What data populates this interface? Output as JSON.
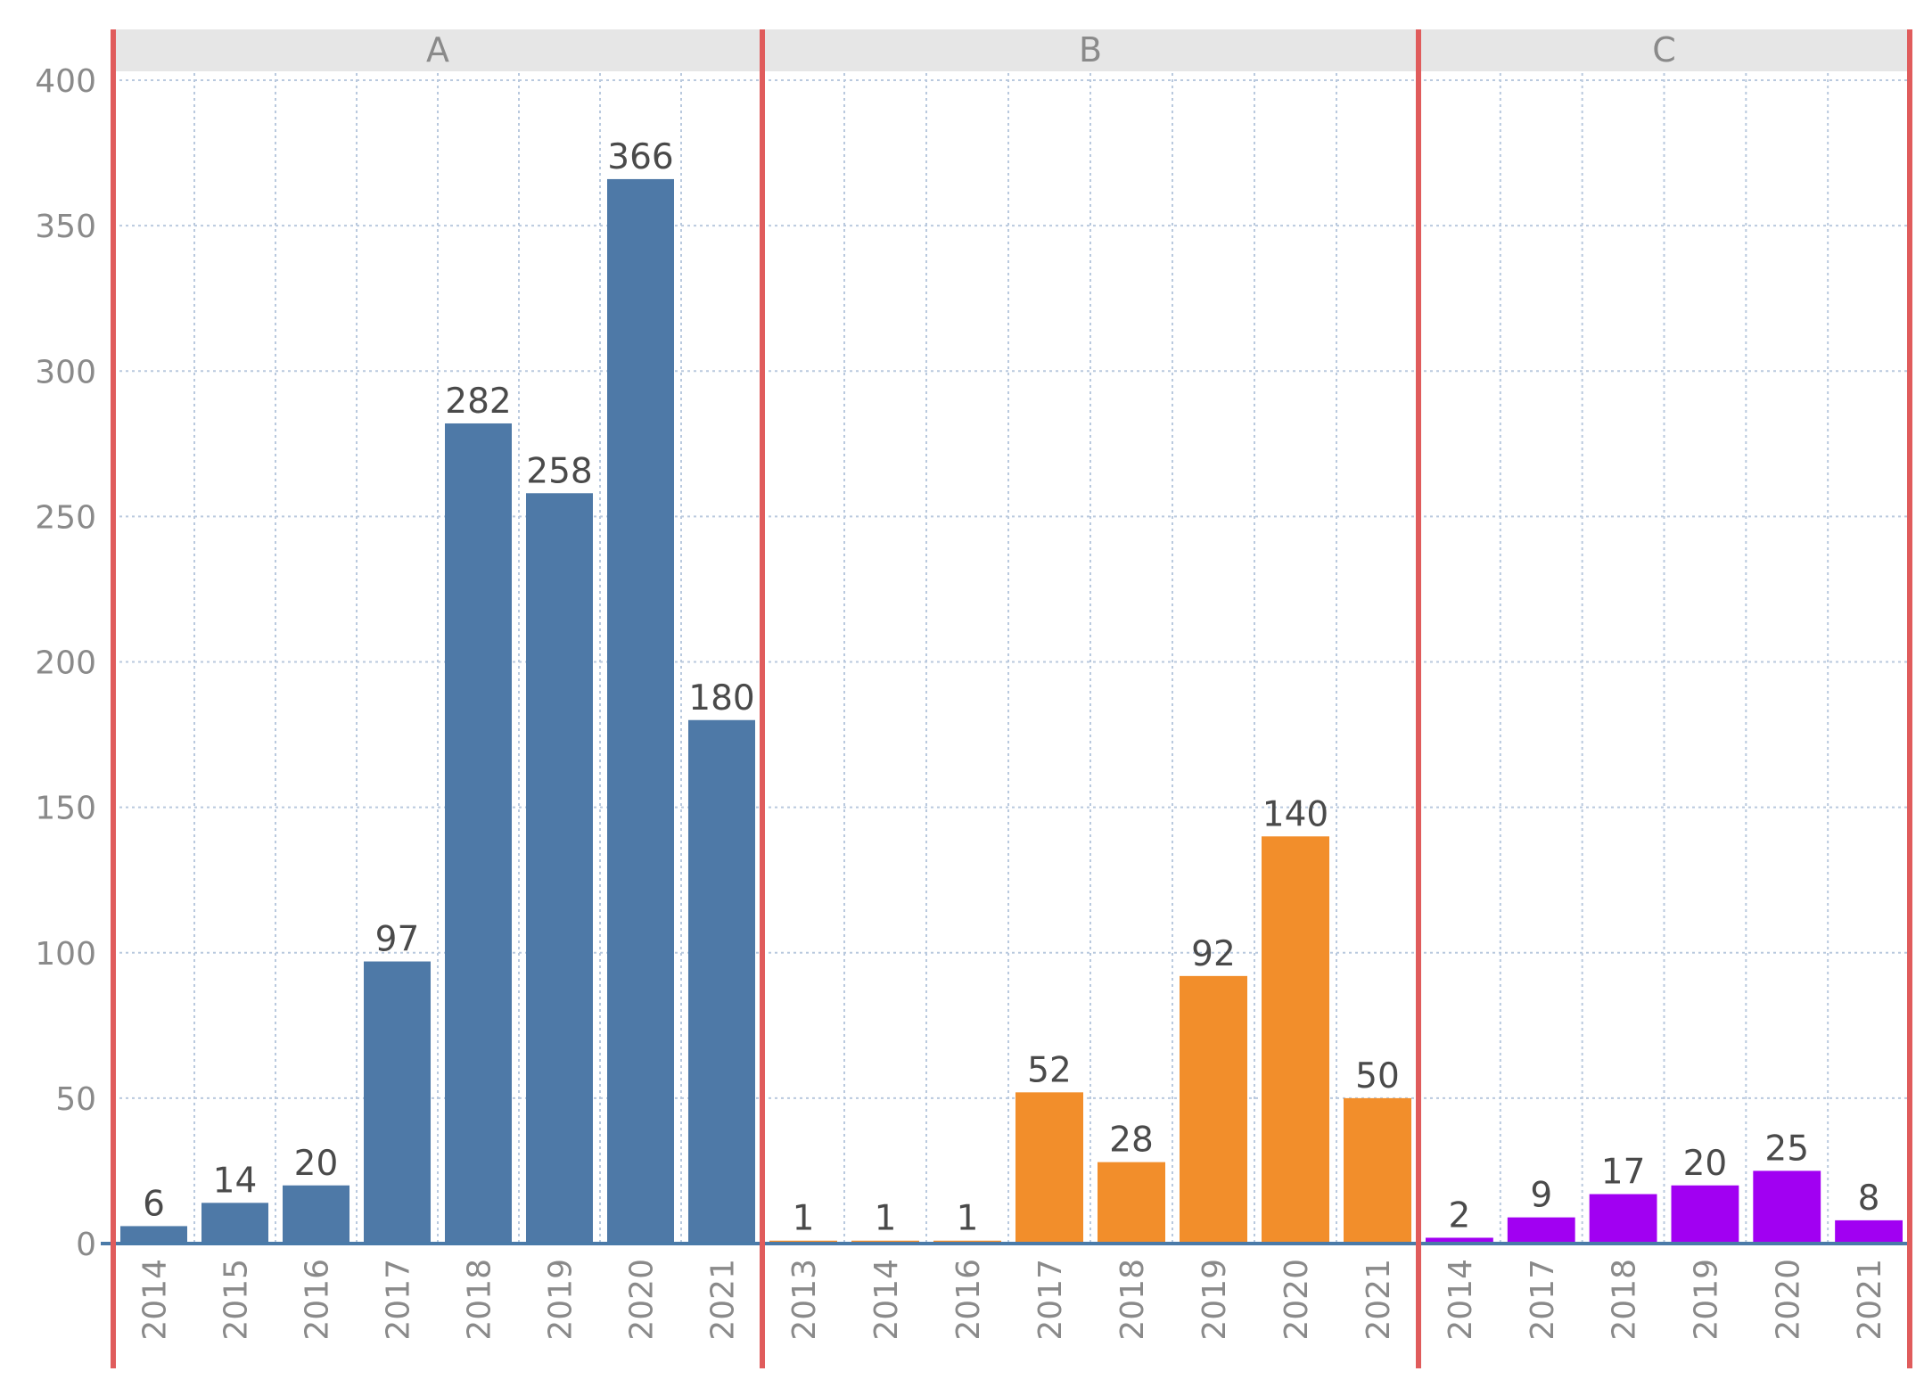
{
  "chart_data": {
    "type": "bar",
    "title": "",
    "xlabel": "",
    "ylabel": "",
    "ylim": [
      0,
      400
    ],
    "yticks": [
      0,
      50,
      100,
      150,
      200,
      250,
      300,
      350,
      400
    ],
    "grid": true,
    "panels": [
      {
        "name": "A",
        "color": "#4e79a7",
        "categories": [
          "2014",
          "2015",
          "2016",
          "2017",
          "2018",
          "2019",
          "2020",
          "2021"
        ],
        "values": [
          6,
          14,
          20,
          97,
          282,
          258,
          366,
          180
        ]
      },
      {
        "name": "B",
        "color": "#f28e2b",
        "categories": [
          "2013",
          "2014",
          "2016",
          "2017",
          "2018",
          "2019",
          "2020",
          "2021"
        ],
        "values": [
          1,
          1,
          1,
          52,
          28,
          92,
          140,
          50
        ]
      },
      {
        "name": "C",
        "color": "#a100f2",
        "categories": [
          "2014",
          "2017",
          "2018",
          "2019",
          "2020",
          "2021"
        ],
        "values": [
          2,
          9,
          17,
          20,
          25,
          8
        ]
      }
    ]
  },
  "colors": {
    "divider": "#e05c5c",
    "axis": "#4a7aa8",
    "grid": "#b9c9de",
    "header_bg": "#e6e6e6"
  }
}
